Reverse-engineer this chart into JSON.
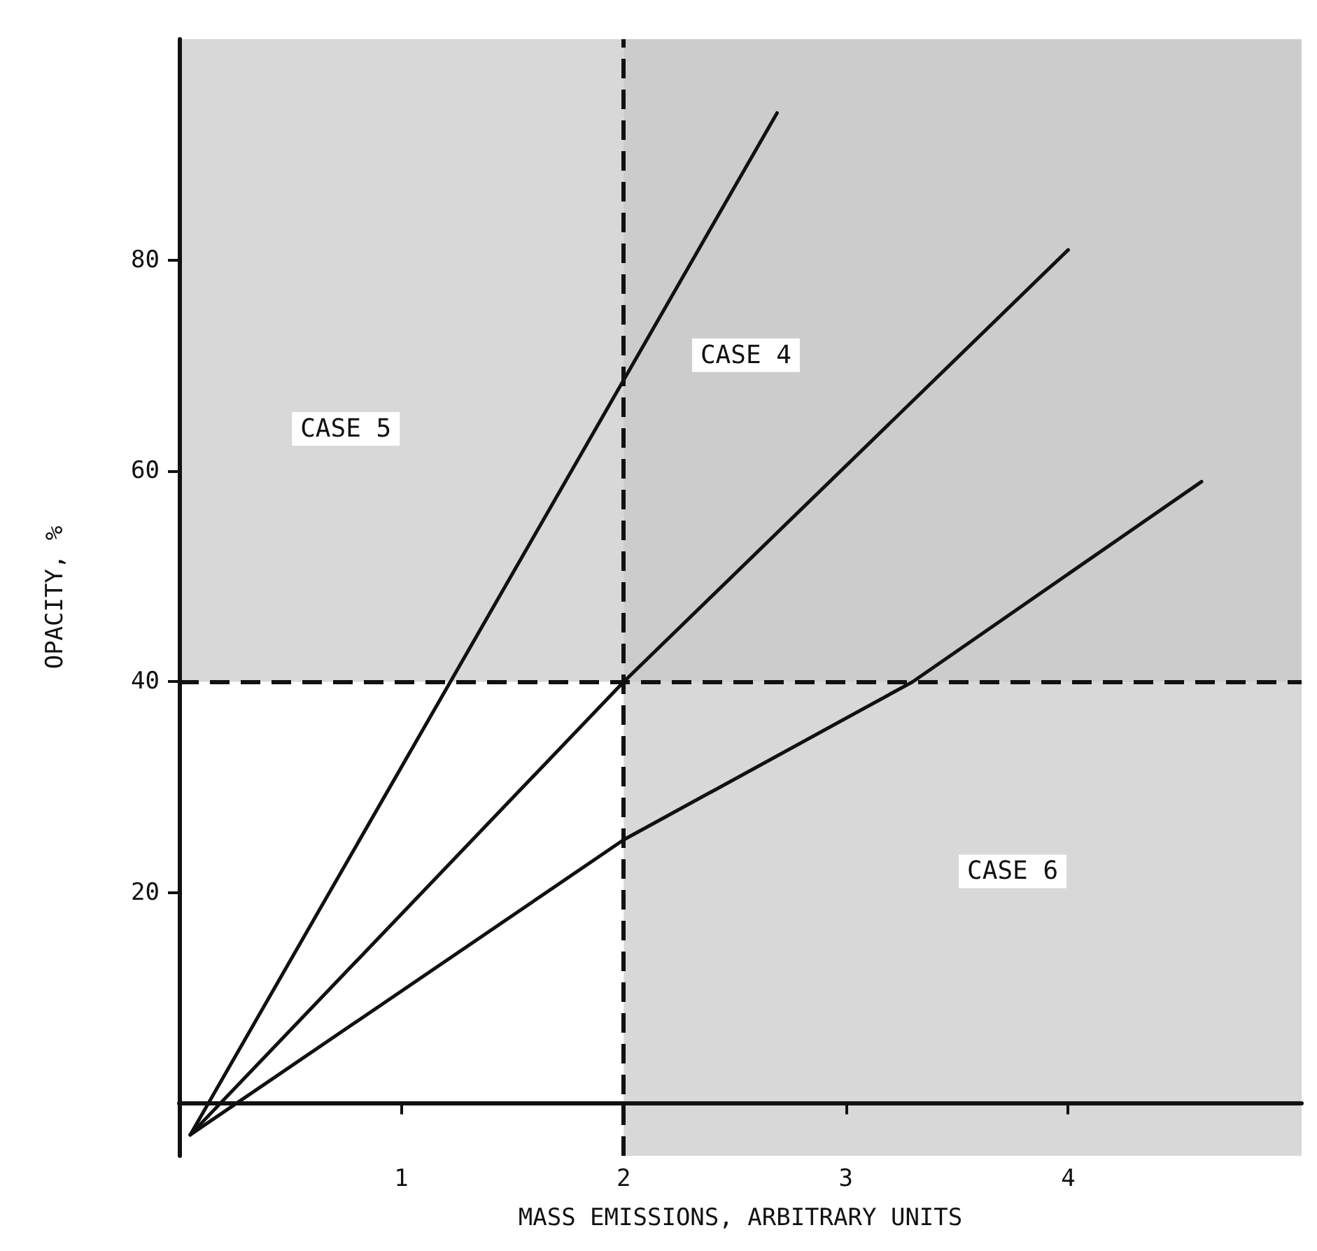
{
  "chart_data": {
    "type": "line",
    "xlabel": "MASS EMISSIONS, ARBITRARY UNITS",
    "ylabel": "OPACITY, %",
    "xlim": [
      0,
      5.05
    ],
    "ylim": [
      -5,
      101
    ],
    "xticks": [
      1,
      2,
      3,
      4
    ],
    "yticks": [
      20,
      40,
      60,
      80
    ],
    "grid": false,
    "marker": "none",
    "line_style": "solid",
    "series": [
      {
        "color": "#111111",
        "x": [
          0.05,
          2.69
        ],
        "values": [
          -3,
          94
        ]
      },
      {
        "color": "#111111",
        "x": [
          0.05,
          2,
          4
        ],
        "values": [
          -3,
          40,
          81
        ]
      },
      {
        "color": "#111111",
        "x": [
          0.05,
          2,
          3.3,
          4.6
        ],
        "values": [
          -3,
          25,
          40,
          59
        ]
      }
    ],
    "bands": [
      {
        "axis": "y",
        "from": 40,
        "to": 101,
        "color": "#c8c8c8"
      },
      {
        "axis": "x",
        "from": 2,
        "to": 5.05,
        "color": "#c8c8c8"
      }
    ],
    "ref_lines": [
      {
        "axis": "x",
        "value": 2,
        "line_style": "dashed",
        "color": "#111111"
      },
      {
        "axis": "y",
        "value": 40,
        "line_style": "dashed",
        "color": "#111111"
      }
    ],
    "annotations": [
      "CASE 5",
      "CASE 4",
      "CASE 6"
    ]
  }
}
